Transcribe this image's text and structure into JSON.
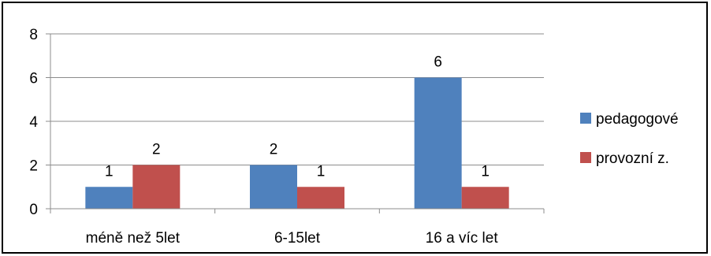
{
  "chart_data": {
    "type": "bar",
    "categories": [
      "méně než 5let",
      "6-15let",
      "16 a víc let"
    ],
    "series": [
      {
        "name": "pedagogové",
        "values": [
          1,
          2,
          6
        ],
        "color": "#4F81BD"
      },
      {
        "name": "provozní z.",
        "values": [
          2,
          1,
          1
        ],
        "color": "#C0504D"
      }
    ],
    "ylim": [
      0,
      8
    ],
    "yticks": [
      0,
      2,
      4,
      6,
      8
    ],
    "grid": true,
    "legend_position": "right",
    "data_labels": true
  }
}
